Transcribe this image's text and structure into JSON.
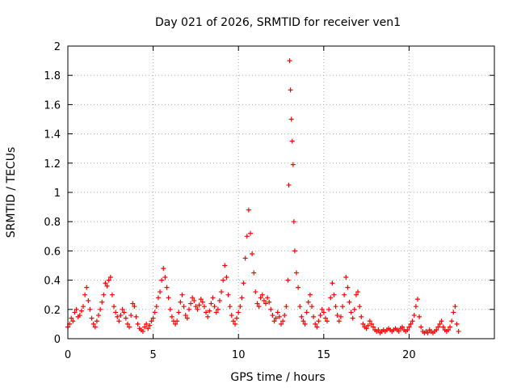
{
  "chart_data": {
    "type": "scatter",
    "title": "Day 021 of 2026, SRMTID for receiver ven1",
    "xlabel": "GPS time / hours",
    "ylabel": "SRMTID / TECUs",
    "xlim": [
      0,
      25
    ],
    "ylim": [
      0,
      2
    ],
    "xticks": [
      0,
      5,
      10,
      15,
      20
    ],
    "yticks": [
      0,
      0.2,
      0.4,
      0.6,
      0.8,
      1,
      1.2,
      1.4,
      1.6,
      1.8,
      2
    ],
    "xtick_labels": [
      "0",
      "5",
      "10",
      "15",
      "20"
    ],
    "ytick_labels": [
      "0",
      "0.2",
      "0.4",
      "0.6",
      "0.8",
      "1",
      "1.2",
      "1.4",
      "1.6",
      "1.8",
      "2"
    ],
    "grid": true,
    "marker": "+",
    "series_color": "#ff0000",
    "series": [
      {
        "name": "SRMTID",
        "points": [
          [
            0.0,
            0.08
          ],
          [
            0.1,
            0.1
          ],
          [
            0.2,
            0.14
          ],
          [
            0.3,
            0.12
          ],
          [
            0.4,
            0.18
          ],
          [
            0.5,
            0.2
          ],
          [
            0.6,
            0.15
          ],
          [
            0.7,
            0.16
          ],
          [
            0.8,
            0.19
          ],
          [
            0.9,
            0.22
          ],
          [
            1.0,
            0.3
          ],
          [
            1.1,
            0.35
          ],
          [
            1.2,
            0.26
          ],
          [
            1.3,
            0.2
          ],
          [
            1.4,
            0.14
          ],
          [
            1.5,
            0.1
          ],
          [
            1.6,
            0.08
          ],
          [
            1.7,
            0.12
          ],
          [
            1.8,
            0.16
          ],
          [
            1.9,
            0.2
          ],
          [
            2.0,
            0.25
          ],
          [
            2.1,
            0.3
          ],
          [
            2.2,
            0.38
          ],
          [
            2.3,
            0.36
          ],
          [
            2.4,
            0.4
          ],
          [
            2.5,
            0.42
          ],
          [
            2.6,
            0.3
          ],
          [
            2.7,
            0.22
          ],
          [
            2.8,
            0.18
          ],
          [
            2.9,
            0.15
          ],
          [
            3.0,
            0.12
          ],
          [
            3.1,
            0.16
          ],
          [
            3.2,
            0.2
          ],
          [
            3.3,
            0.18
          ],
          [
            3.4,
            0.14
          ],
          [
            3.5,
            0.1
          ],
          [
            3.6,
            0.08
          ],
          [
            3.7,
            0.16
          ],
          [
            3.8,
            0.24
          ],
          [
            3.9,
            0.22
          ],
          [
            4.0,
            0.15
          ],
          [
            4.1,
            0.1
          ],
          [
            4.2,
            0.07
          ],
          [
            4.3,
            0.06
          ],
          [
            4.4,
            0.05
          ],
          [
            4.5,
            0.08
          ],
          [
            4.6,
            0.1
          ],
          [
            4.7,
            0.07
          ],
          [
            4.8,
            0.09
          ],
          [
            4.9,
            0.12
          ],
          [
            5.0,
            0.14
          ],
          [
            5.1,
            0.18
          ],
          [
            5.2,
            0.22
          ],
          [
            5.3,
            0.28
          ],
          [
            5.4,
            0.32
          ],
          [
            5.5,
            0.4
          ],
          [
            5.6,
            0.48
          ],
          [
            5.7,
            0.42
          ],
          [
            5.8,
            0.35
          ],
          [
            5.9,
            0.28
          ],
          [
            6.0,
            0.2
          ],
          [
            6.1,
            0.15
          ],
          [
            6.2,
            0.12
          ],
          [
            6.3,
            0.1
          ],
          [
            6.4,
            0.12
          ],
          [
            6.5,
            0.18
          ],
          [
            6.6,
            0.25
          ],
          [
            6.7,
            0.3
          ],
          [
            6.8,
            0.22
          ],
          [
            6.9,
            0.16
          ],
          [
            7.0,
            0.14
          ],
          [
            7.1,
            0.2
          ],
          [
            7.2,
            0.24
          ],
          [
            7.3,
            0.28
          ],
          [
            7.4,
            0.26
          ],
          [
            7.5,
            0.22
          ],
          [
            7.6,
            0.2
          ],
          [
            7.7,
            0.23
          ],
          [
            7.8,
            0.27
          ],
          [
            7.9,
            0.25
          ],
          [
            8.0,
            0.22
          ],
          [
            8.1,
            0.18
          ],
          [
            8.2,
            0.15
          ],
          [
            8.3,
            0.19
          ],
          [
            8.4,
            0.24
          ],
          [
            8.5,
            0.28
          ],
          [
            8.6,
            0.22
          ],
          [
            8.7,
            0.18
          ],
          [
            8.8,
            0.2
          ],
          [
            8.9,
            0.26
          ],
          [
            9.0,
            0.32
          ],
          [
            9.1,
            0.4
          ],
          [
            9.2,
            0.5
          ],
          [
            9.3,
            0.42
          ],
          [
            9.4,
            0.3
          ],
          [
            9.5,
            0.22
          ],
          [
            9.6,
            0.16
          ],
          [
            9.7,
            0.12
          ],
          [
            9.8,
            0.1
          ],
          [
            9.9,
            0.14
          ],
          [
            10.0,
            0.18
          ],
          [
            10.1,
            0.22
          ],
          [
            10.2,
            0.28
          ],
          [
            10.3,
            0.38
          ],
          [
            10.4,
            0.55
          ],
          [
            10.5,
            0.7
          ],
          [
            10.6,
            0.88
          ],
          [
            10.7,
            0.72
          ],
          [
            10.8,
            0.58
          ],
          [
            10.9,
            0.45
          ],
          [
            11.0,
            0.32
          ],
          [
            11.1,
            0.24
          ],
          [
            11.2,
            0.22
          ],
          [
            11.3,
            0.28
          ],
          [
            11.4,
            0.3
          ],
          [
            11.5,
            0.26
          ],
          [
            11.6,
            0.24
          ],
          [
            11.7,
            0.28
          ],
          [
            11.8,
            0.25
          ],
          [
            11.9,
            0.2
          ],
          [
            12.0,
            0.16
          ],
          [
            12.1,
            0.12
          ],
          [
            12.2,
            0.14
          ],
          [
            12.3,
            0.18
          ],
          [
            12.4,
            0.15
          ],
          [
            12.5,
            0.1
          ],
          [
            12.6,
            0.12
          ],
          [
            12.7,
            0.16
          ],
          [
            12.8,
            0.22
          ],
          [
            12.9,
            0.4
          ],
          [
            12.95,
            1.05
          ],
          [
            13.0,
            1.9
          ],
          [
            13.05,
            1.7
          ],
          [
            13.1,
            1.5
          ],
          [
            13.15,
            1.35
          ],
          [
            13.2,
            1.19
          ],
          [
            13.25,
            0.8
          ],
          [
            13.3,
            0.6
          ],
          [
            13.4,
            0.45
          ],
          [
            13.5,
            0.35
          ],
          [
            13.6,
            0.22
          ],
          [
            13.7,
            0.15
          ],
          [
            13.8,
            0.12
          ],
          [
            13.9,
            0.1
          ],
          [
            14.0,
            0.18
          ],
          [
            14.1,
            0.25
          ],
          [
            14.2,
            0.3
          ],
          [
            14.3,
            0.22
          ],
          [
            14.4,
            0.15
          ],
          [
            14.5,
            0.1
          ],
          [
            14.6,
            0.08
          ],
          [
            14.7,
            0.12
          ],
          [
            14.8,
            0.16
          ],
          [
            14.9,
            0.2
          ],
          [
            15.0,
            0.18
          ],
          [
            15.1,
            0.14
          ],
          [
            15.2,
            0.12
          ],
          [
            15.3,
            0.2
          ],
          [
            15.4,
            0.28
          ],
          [
            15.5,
            0.38
          ],
          [
            15.6,
            0.3
          ],
          [
            15.7,
            0.22
          ],
          [
            15.8,
            0.16
          ],
          [
            15.9,
            0.12
          ],
          [
            16.0,
            0.15
          ],
          [
            16.1,
            0.22
          ],
          [
            16.2,
            0.3
          ],
          [
            16.3,
            0.42
          ],
          [
            16.4,
            0.35
          ],
          [
            16.5,
            0.25
          ],
          [
            16.6,
            0.18
          ],
          [
            16.7,
            0.14
          ],
          [
            16.8,
            0.2
          ],
          [
            16.9,
            0.3
          ],
          [
            17.0,
            0.32
          ],
          [
            17.1,
            0.22
          ],
          [
            17.2,
            0.15
          ],
          [
            17.3,
            0.1
          ],
          [
            17.4,
            0.08
          ],
          [
            17.5,
            0.07
          ],
          [
            17.6,
            0.09
          ],
          [
            17.7,
            0.12
          ],
          [
            17.8,
            0.1
          ],
          [
            17.9,
            0.08
          ],
          [
            18.0,
            0.06
          ],
          [
            18.1,
            0.05
          ],
          [
            18.2,
            0.06
          ],
          [
            18.3,
            0.04
          ],
          [
            18.4,
            0.05
          ],
          [
            18.5,
            0.06
          ],
          [
            18.6,
            0.05
          ],
          [
            18.7,
            0.06
          ],
          [
            18.8,
            0.07
          ],
          [
            18.9,
            0.06
          ],
          [
            19.0,
            0.05
          ],
          [
            19.1,
            0.06
          ],
          [
            19.2,
            0.07
          ],
          [
            19.3,
            0.06
          ],
          [
            19.4,
            0.05
          ],
          [
            19.5,
            0.07
          ],
          [
            19.6,
            0.08
          ],
          [
            19.7,
            0.06
          ],
          [
            19.8,
            0.05
          ],
          [
            19.9,
            0.06
          ],
          [
            20.0,
            0.08
          ],
          [
            20.1,
            0.1
          ],
          [
            20.2,
            0.12
          ],
          [
            20.3,
            0.16
          ],
          [
            20.4,
            0.22
          ],
          [
            20.5,
            0.27
          ],
          [
            20.6,
            0.15
          ],
          [
            20.7,
            0.08
          ],
          [
            20.8,
            0.05
          ],
          [
            20.9,
            0.04
          ],
          [
            21.0,
            0.05
          ],
          [
            21.1,
            0.04
          ],
          [
            21.2,
            0.06
          ],
          [
            21.3,
            0.05
          ],
          [
            21.4,
            0.04
          ],
          [
            21.5,
            0.05
          ],
          [
            21.6,
            0.06
          ],
          [
            21.7,
            0.08
          ],
          [
            21.8,
            0.1
          ],
          [
            21.9,
            0.12
          ],
          [
            22.0,
            0.08
          ],
          [
            22.1,
            0.06
          ],
          [
            22.2,
            0.05
          ],
          [
            22.3,
            0.06
          ],
          [
            22.4,
            0.08
          ],
          [
            22.5,
            0.12
          ],
          [
            22.6,
            0.18
          ],
          [
            22.7,
            0.22
          ],
          [
            22.8,
            0.1
          ],
          [
            22.9,
            0.05
          ]
        ]
      }
    ]
  }
}
